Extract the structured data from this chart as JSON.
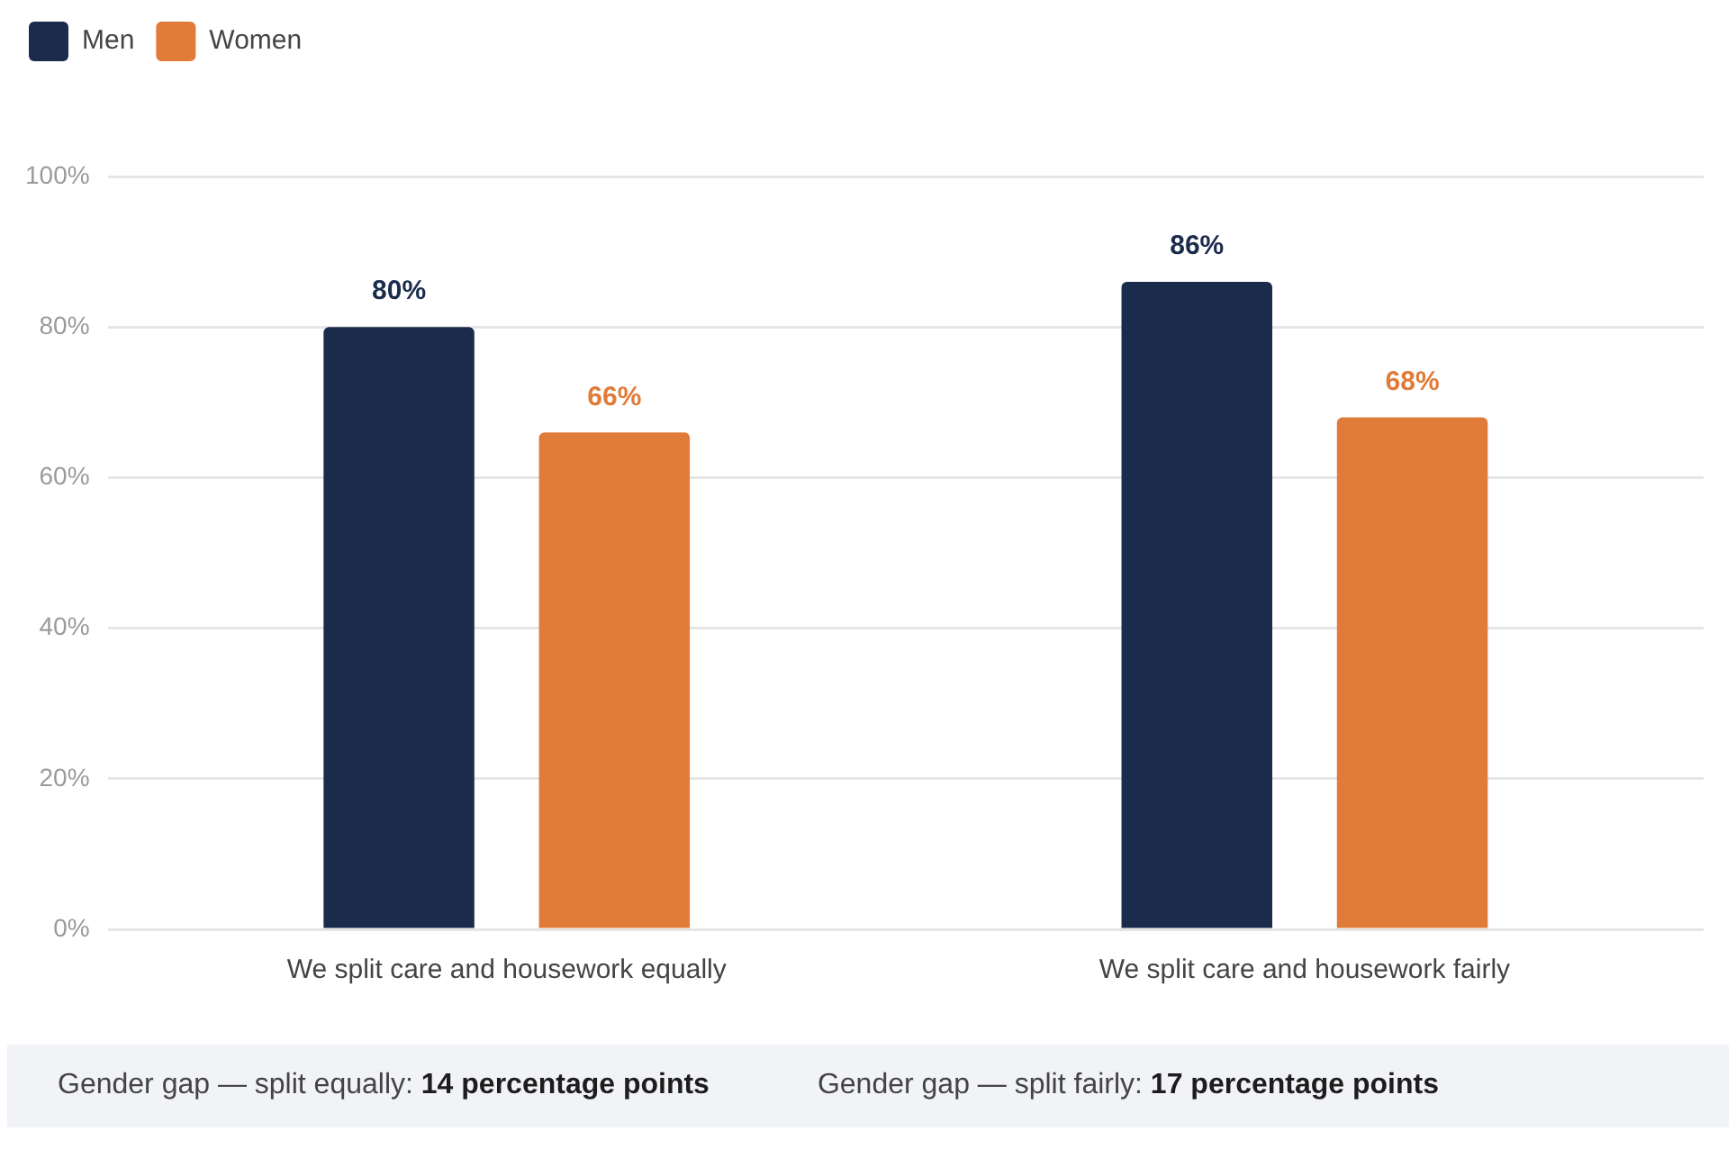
{
  "chart_data": {
    "type": "bar",
    "categories": [
      "We split care and housework equally",
      "We split care and housework fairly"
    ],
    "series": [
      {
        "name": "Men",
        "color": "#1a2b4c",
        "values": [
          80,
          86
        ],
        "value_labels": [
          "80%",
          "86%"
        ]
      },
      {
        "name": "Women",
        "color": "#e07b39",
        "values": [
          66,
          68
        ],
        "value_labels": [
          "66%",
          "68%"
        ]
      }
    ],
    "ylim": [
      0,
      100
    ],
    "yticks": [
      {
        "value": 0,
        "label": "0%"
      },
      {
        "value": 20,
        "label": "20%"
      },
      {
        "value": 40,
        "label": "40%"
      },
      {
        "value": 60,
        "label": "60%"
      },
      {
        "value": 80,
        "label": "80%"
      },
      {
        "value": 100,
        "label": "100%"
      }
    ],
    "grid": "y",
    "legend": "top left",
    "annotations": [
      "Gender gap — split equally: 14 percentage points",
      "Gender gap — split fairly: 17 percentage points"
    ]
  }
}
